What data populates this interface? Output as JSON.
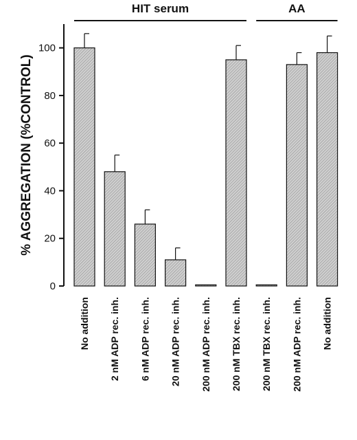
{
  "chart_data": {
    "type": "bar",
    "ylabel": "% AGGREGATION (%CONTROL)",
    "ylim": [
      0,
      110
    ],
    "yticks": [
      0,
      20,
      40,
      60,
      80,
      100
    ],
    "categories": [
      "No addition",
      "2 nM ADP rec. inh.",
      "6 nM ADP rec. inh.",
      "20 nM ADP rec. inh.",
      "200 nM ADP rec. inh.",
      "200 nM TBX rec. inh.",
      "200 nM TBX rec. inh.",
      "200 nM ADP rec. inh.",
      "No addition"
    ],
    "values": [
      100,
      48,
      26,
      11,
      0.5,
      95,
      0.5,
      93,
      98
    ],
    "errors": [
      6,
      7,
      6,
      5,
      0,
      6,
      0,
      5,
      7
    ],
    "groups": [
      {
        "label": "HIT serum",
        "start": 0,
        "end": 5
      },
      {
        "label": "AA",
        "start": 6,
        "end": 8
      }
    ],
    "grid": false,
    "colors": {
      "bar_fill": "#c8c8c8",
      "bar_hatch": "#8a8a8a",
      "stroke": "#111111"
    }
  }
}
